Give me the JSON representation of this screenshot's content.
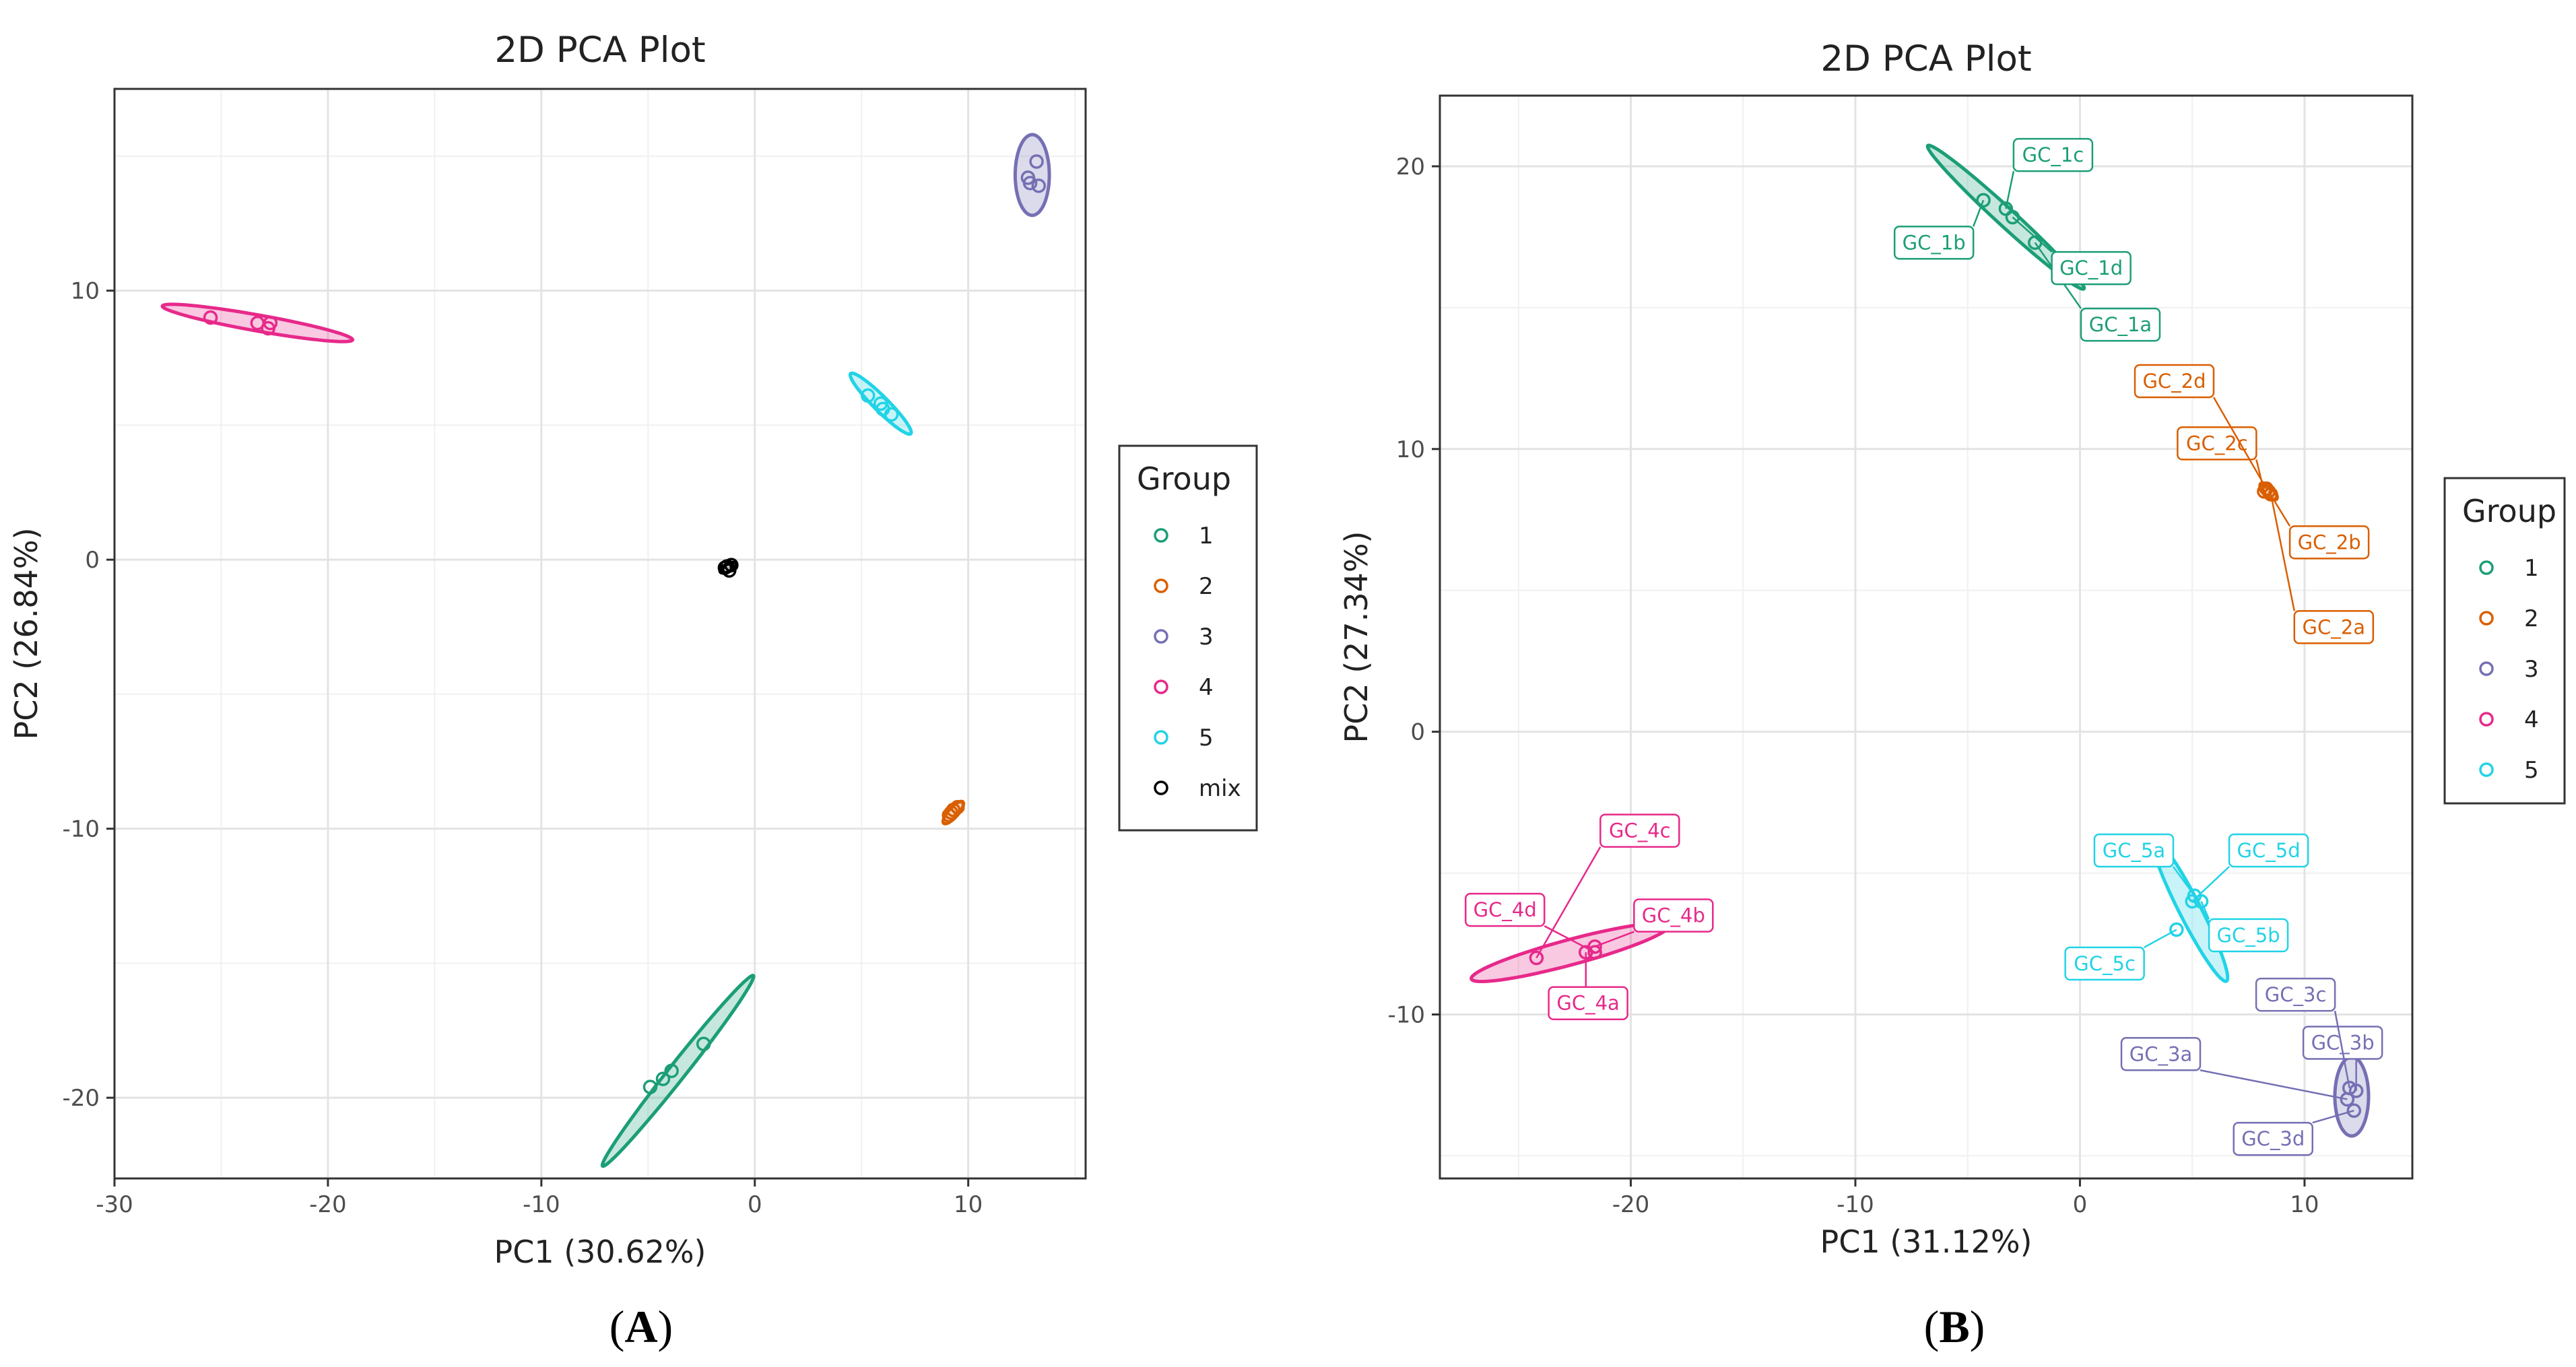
{
  "colors": {
    "1": "#1b9e77",
    "2": "#d95f02",
    "3": "#7570b3",
    "4": "#e7298a",
    "5": "#22d3e6",
    "mix": "#000000"
  },
  "panels": {
    "A": {
      "tag_open": "(",
      "tag_letter": "A",
      "tag_close": ")"
    },
    "B": {
      "tag_open": "(",
      "tag_letter": "B",
      "tag_close": ")"
    }
  },
  "chart_data": [
    {
      "type": "scatter",
      "id": "A",
      "title": "2D PCA Plot",
      "xlabel": "PC1 (30.62%)",
      "ylabel": "PC2 (26.84%)",
      "xlim": [
        -30,
        15.5
      ],
      "ylim": [
        -23,
        17.5
      ],
      "xticks": [
        -30,
        -20,
        -10,
        0,
        10
      ],
      "yticks": [
        -20,
        -10,
        0,
        10
      ],
      "grid": true,
      "legend": {
        "title": "Group",
        "position": "right",
        "entries": [
          "1",
          "2",
          "3",
          "4",
          "5",
          "mix"
        ]
      },
      "series": [
        {
          "name": "1",
          "points": [
            [
              -4.9,
              -19.6
            ],
            [
              -3.9,
              -19.0
            ],
            [
              -4.3,
              -19.3
            ],
            [
              -2.4,
              -18.0
            ]
          ],
          "ellipse": {
            "center": [
              -3.6,
              -19.0
            ],
            "semi_major": 5.0,
            "semi_minor": 0.35,
            "angle_deg": 45
          }
        },
        {
          "name": "2",
          "points": [
            [
              9.1,
              -9.5
            ],
            [
              9.3,
              -9.3
            ],
            [
              9.5,
              -9.2
            ],
            [
              9.2,
              -9.4
            ]
          ],
          "ellipse": {
            "center": [
              9.3,
              -9.4
            ],
            "semi_major": 0.6,
            "semi_minor": 0.2,
            "angle_deg": 40
          }
        },
        {
          "name": "3",
          "points": [
            [
              12.8,
              14.2
            ],
            [
              13.2,
              14.8
            ],
            [
              13.3,
              13.9
            ],
            [
              12.9,
              14.0
            ]
          ],
          "ellipse": {
            "center": [
              13.0,
              14.3
            ],
            "semi_major": 1.5,
            "semi_minor": 0.8,
            "angle_deg": 90
          }
        },
        {
          "name": "4",
          "points": [
            [
              -25.5,
              9.0
            ],
            [
              -23.3,
              8.8
            ],
            [
              -22.8,
              8.6
            ],
            [
              -22.7,
              8.8
            ]
          ],
          "ellipse": {
            "center": [
              -23.3,
              8.8
            ],
            "semi_major": 4.5,
            "semi_minor": 0.3,
            "angle_deg": -8
          }
        },
        {
          "name": "5",
          "points": [
            [
              5.3,
              6.1
            ],
            [
              6.0,
              5.6
            ],
            [
              6.4,
              5.4
            ],
            [
              5.9,
              5.8
            ]
          ],
          "ellipse": {
            "center": [
              5.9,
              5.8
            ],
            "semi_major": 1.8,
            "semi_minor": 0.3,
            "angle_deg": -38
          }
        },
        {
          "name": "mix",
          "points": [
            [
              -1.4,
              -0.3
            ],
            [
              -1.1,
              -0.2
            ],
            [
              -1.2,
              -0.4
            ],
            [
              -1.3,
              -0.25
            ]
          ],
          "ellipse": {
            "center": [
              -1.25,
              -0.3
            ],
            "semi_major": 0.4,
            "semi_minor": 0.15,
            "angle_deg": 20
          }
        }
      ]
    },
    {
      "type": "scatter",
      "id": "B",
      "title": "2D PCA Plot",
      "xlabel": "PC1 (31.12%)",
      "ylabel": "PC2 (27.34%)",
      "xlim": [
        -28.5,
        14.8
      ],
      "ylim": [
        -15.8,
        22.5
      ],
      "xticks": [
        -20,
        -10,
        0,
        10
      ],
      "yticks": [
        -10,
        0,
        10,
        20
      ],
      "grid": true,
      "legend": {
        "title": "Group",
        "position": "right",
        "entries": [
          "1",
          "2",
          "3",
          "4",
          "5"
        ]
      },
      "series": [
        {
          "name": "1",
          "points": [
            {
              "label": "GC_1a",
              "x": -2.0,
              "y": 17.3,
              "label_at": [
                1.8,
                14.4
              ]
            },
            {
              "label": "GC_1b",
              "x": -4.3,
              "y": 18.8,
              "label_at": [
                -6.5,
                17.3
              ]
            },
            {
              "label": "GC_1c",
              "x": -3.3,
              "y": 18.5,
              "label_at": [
                -1.2,
                20.4
              ]
            },
            {
              "label": "GC_1d",
              "x": -3.0,
              "y": 18.2,
              "label_at": [
                0.5,
                16.4
              ]
            }
          ],
          "ellipse": {
            "center": [
              -3.3,
              18.2
            ],
            "semi_major": 4.3,
            "semi_minor": 0.35,
            "angle_deg": -36
          }
        },
        {
          "name": "2",
          "points": [
            {
              "label": "GC_2a",
              "x": 8.5,
              "y": 8.4,
              "label_at": [
                11.3,
                3.7
              ]
            },
            {
              "label": "GC_2b",
              "x": 8.4,
              "y": 8.5,
              "label_at": [
                11.1,
                6.7
              ]
            },
            {
              "label": "GC_2c",
              "x": 8.2,
              "y": 8.5,
              "label_at": [
                6.1,
                10.2
              ]
            },
            {
              "label": "GC_2d",
              "x": 8.3,
              "y": 8.6,
              "label_at": [
                4.2,
                12.4
              ]
            }
          ],
          "ellipse": {
            "center": [
              8.4,
              8.5
            ],
            "semi_major": 0.45,
            "semi_minor": 0.18,
            "angle_deg": -35
          }
        },
        {
          "name": "3",
          "points": [
            {
              "label": "GC_3a",
              "x": 11.9,
              "y": -13.0,
              "label_at": [
                3.6,
                -11.4
              ]
            },
            {
              "label": "GC_3b",
              "x": 12.3,
              "y": -12.7,
              "label_at": [
                11.7,
                -11.0
              ]
            },
            {
              "label": "GC_3c",
              "x": 12.0,
              "y": -12.6,
              "label_at": [
                9.6,
                -9.3
              ]
            },
            {
              "label": "GC_3d",
              "x": 12.2,
              "y": -13.4,
              "label_at": [
                8.6,
                -14.4
              ]
            }
          ],
          "ellipse": {
            "center": [
              12.1,
              -12.9
            ],
            "semi_major": 1.4,
            "semi_minor": 0.75,
            "angle_deg": 90
          }
        },
        {
          "name": "4",
          "points": [
            {
              "label": "GC_4a",
              "x": -22.0,
              "y": -7.8,
              "label_at": [
                -21.9,
                -9.6
              ]
            },
            {
              "label": "GC_4b",
              "x": -21.6,
              "y": -7.6,
              "label_at": [
                -18.1,
                -6.5
              ]
            },
            {
              "label": "GC_4c",
              "x": -24.2,
              "y": -8.0,
              "label_at": [
                -19.6,
                -3.5
              ]
            },
            {
              "label": "GC_4d",
              "x": -21.6,
              "y": -7.8,
              "label_at": [
                -25.6,
                -6.3
              ]
            }
          ],
          "ellipse": {
            "center": [
              -22.7,
              -7.8
            ],
            "semi_major": 4.5,
            "semi_minor": 0.45,
            "angle_deg": 12
          }
        },
        {
          "name": "5",
          "points": [
            {
              "label": "GC_5a",
              "x": 5.1,
              "y": -5.8,
              "label_at": [
                2.4,
                -4.2
              ]
            },
            {
              "label": "GC_5b",
              "x": 5.4,
              "y": -6.0,
              "label_at": [
                7.5,
                -7.2
              ]
            },
            {
              "label": "GC_5c",
              "x": 4.3,
              "y": -7.0,
              "label_at": [
                1.1,
                -8.2
              ]
            },
            {
              "label": "GC_5d",
              "x": 5.0,
              "y": -6.0,
              "label_at": [
                8.4,
                -4.2
              ]
            }
          ],
          "ellipse": {
            "center": [
              4.9,
              -6.3
            ],
            "semi_major": 3.0,
            "semi_minor": 0.45,
            "angle_deg": -57
          }
        }
      ]
    }
  ]
}
